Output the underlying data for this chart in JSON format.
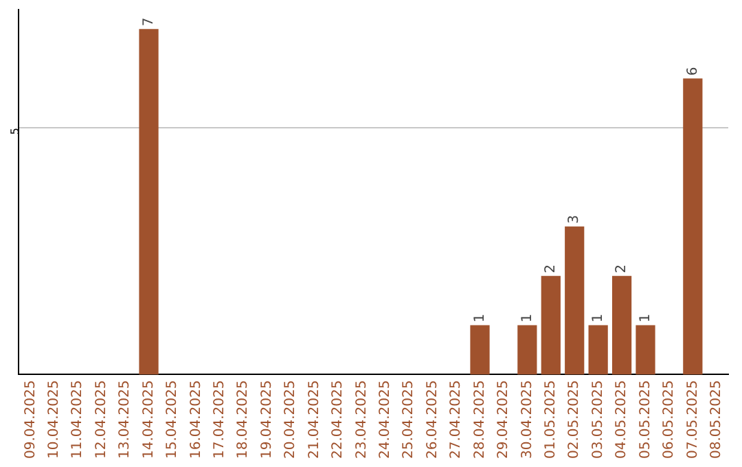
{
  "chart_data": {
    "type": "bar",
    "categories": [
      "09.04.2025",
      "10.04.2025",
      "11.04.2025",
      "12.04.2025",
      "13.04.2025",
      "14.04.2025",
      "15.04.2025",
      "16.04.2025",
      "17.04.2025",
      "18.04.2025",
      "19.04.2025",
      "20.04.2025",
      "21.04.2025",
      "22.04.2025",
      "23.04.2025",
      "24.04.2025",
      "25.04.2025",
      "26.04.2025",
      "27.04.2025",
      "28.04.2025",
      "29.04.2025",
      "30.04.2025",
      "01.05.2025",
      "02.05.2025",
      "03.05.2025",
      "04.05.2025",
      "05.05.2025",
      "06.05.2025",
      "07.05.2025",
      "08.05.2025"
    ],
    "values": [
      0,
      0,
      0,
      0,
      0,
      7,
      0,
      0,
      0,
      0,
      0,
      0,
      0,
      0,
      0,
      0,
      0,
      0,
      0,
      1,
      0,
      1,
      2,
      3,
      1,
      2,
      1,
      0,
      6,
      0
    ],
    "value_labels": [
      null,
      null,
      null,
      null,
      null,
      "7",
      null,
      null,
      null,
      null,
      null,
      null,
      null,
      null,
      null,
      null,
      null,
      null,
      null,
      "1",
      null,
      "1",
      "2",
      "3",
      "1",
      "2",
      "1",
      null,
      "6",
      null
    ],
    "color": "#a0522d",
    "ylim": [
      0,
      7.4
    ],
    "yticks": [
      5
    ],
    "grid": "y",
    "legend": false
  }
}
